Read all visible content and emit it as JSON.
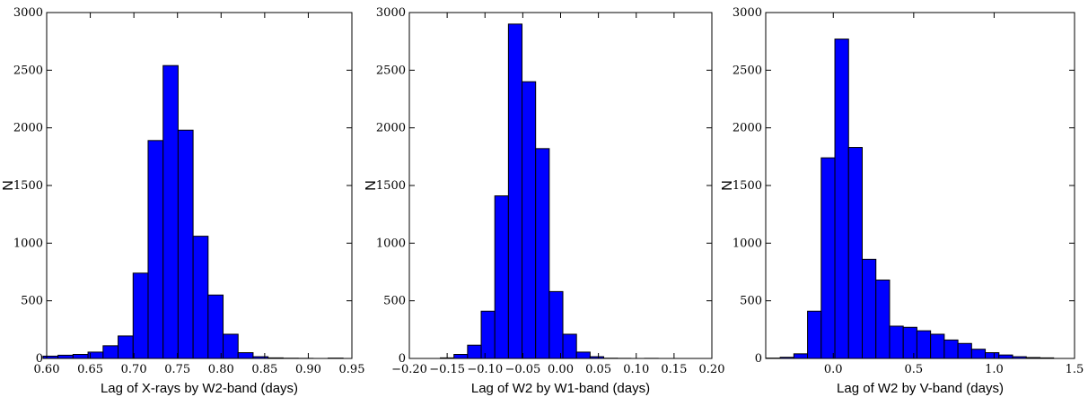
{
  "chart_data": [
    {
      "type": "bar",
      "xlabel": "Lag of X-rays by W2-band (days)",
      "ylabel": "N",
      "xlim": [
        0.6,
        0.95
      ],
      "ylim": [
        0,
        3000
      ],
      "bar_color": "#0000ff",
      "xticks": [
        0.6,
        0.65,
        0.7,
        0.75,
        0.8,
        0.85,
        0.9,
        0.95
      ],
      "xtick_labels": [
        "0.60",
        "0.65",
        "0.70",
        "0.75",
        "0.80",
        "0.85",
        "0.90",
        "0.95"
      ],
      "yticks": [
        0,
        500,
        1000,
        1500,
        2000,
        2500,
        3000
      ],
      "ytick_labels": [
        "0",
        "500",
        "1000",
        "1500",
        "2000",
        "2500",
        "3000"
      ],
      "bin_edges": [
        0.5958,
        0.613,
        0.6302,
        0.6474,
        0.6647,
        0.6819,
        0.6991,
        0.7163,
        0.7335,
        0.7507,
        0.7679,
        0.7851,
        0.8023,
        0.8195,
        0.8367,
        0.8539,
        0.8711,
        0.8883,
        0.9055,
        0.9227,
        0.9399
      ],
      "values": [
        20,
        28,
        35,
        55,
        110,
        195,
        740,
        1890,
        2540,
        1980,
        1060,
        550,
        210,
        50,
        15,
        5,
        2,
        1,
        0,
        3
      ]
    },
    {
      "type": "bar",
      "xlabel": "Lag of W2 by W1-band (days)",
      "ylabel": "N",
      "xlim": [
        -0.2,
        0.2
      ],
      "ylim": [
        0,
        3000
      ],
      "bar_color": "#0000ff",
      "xticks": [
        -0.2,
        -0.15,
        -0.1,
        -0.05,
        0.0,
        0.05,
        0.1,
        0.15,
        0.2
      ],
      "xtick_labels": [
        "−0.20",
        "−0.15",
        "−0.10",
        "−0.05",
        "0.00",
        "0.05",
        "0.10",
        "0.15",
        "0.20"
      ],
      "yticks": [
        0,
        500,
        1000,
        1500,
        2000,
        2500,
        3000
      ],
      "ytick_labels": [
        "0",
        "500",
        "1000",
        "1500",
        "2000",
        "2500",
        "3000"
      ],
      "bin_edges": [
        -0.159,
        -0.141,
        -0.123,
        -0.105,
        -0.087,
        -0.069,
        -0.051,
        -0.033,
        -0.015,
        0.003,
        0.021,
        0.039,
        0.057,
        0.075,
        0.093,
        0.111,
        0.129
      ],
      "values": [
        5,
        35,
        115,
        410,
        1410,
        2900,
        2400,
        1820,
        580,
        210,
        55,
        15,
        2,
        1,
        0,
        1
      ]
    },
    {
      "type": "bar",
      "xlabel": "Lag of W2 by V-band (days)",
      "ylabel": "N",
      "xlim": [
        -0.42,
        1.5
      ],
      "ylim": [
        0,
        3000
      ],
      "bar_color": "#0000ff",
      "xticks": [
        0.0,
        0.5,
        1.0,
        1.5
      ],
      "xtick_labels": [
        "0.0",
        "0.5",
        "1.0",
        "1.5"
      ],
      "yticks": [
        0,
        500,
        1000,
        1500,
        2000,
        2500,
        3000
      ],
      "ytick_labels": [
        "0",
        "500",
        "1000",
        "1500",
        "2000",
        "2500",
        "3000"
      ],
      "bin_edges": [
        -0.415,
        -0.33,
        -0.245,
        -0.16,
        -0.075,
        0.01,
        0.095,
        0.18,
        0.265,
        0.35,
        0.435,
        0.52,
        0.605,
        0.69,
        0.775,
        0.86,
        0.945,
        1.03,
        1.115,
        1.2,
        1.285,
        1.37
      ],
      "values": [
        3,
        10,
        40,
        410,
        1740,
        2770,
        1830,
        860,
        680,
        280,
        270,
        240,
        210,
        160,
        130,
        80,
        50,
        30,
        15,
        8,
        5
      ]
    }
  ]
}
